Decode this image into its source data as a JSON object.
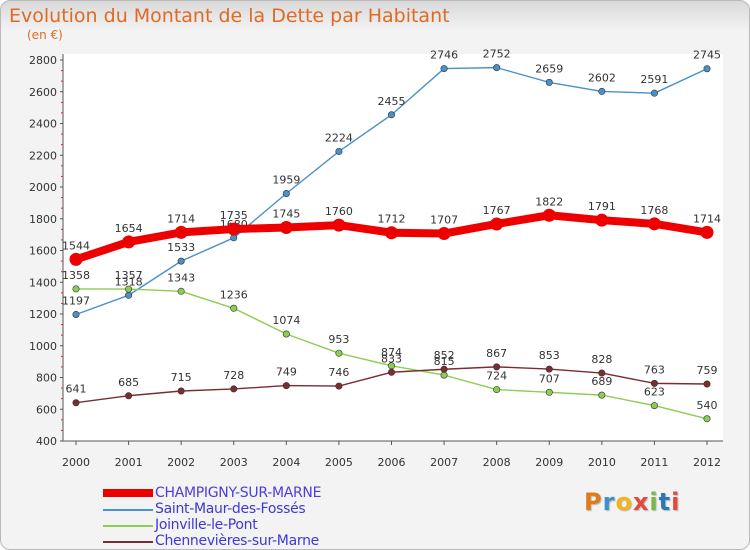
{
  "title": "Evolution du Montant de la Dette par Habitant",
  "subtitle": "(en €)",
  "logo": {
    "text": "Proxiti",
    "colors": [
      "#e07b1a",
      "#3f8fc9",
      "#f2b41b",
      "#e24b3b",
      "#7ab648",
      "#2d76b8",
      "#e24b3b"
    ]
  },
  "chart_data": {
    "type": "line",
    "title": "Evolution du Montant de la Dette par Habitant",
    "subtitle": "(en €)",
    "x": [
      "2000",
      "2001",
      "2002",
      "2003",
      "2004",
      "2005",
      "2006",
      "2007",
      "2008",
      "2009",
      "2010",
      "2011",
      "2012"
    ],
    "ylim": [
      400,
      2800
    ],
    "yticks": [
      400,
      600,
      800,
      1000,
      1200,
      1400,
      1600,
      1800,
      2000,
      2200,
      2400,
      2600,
      2800
    ],
    "grid": false,
    "legend_position": "bottom-left",
    "series": [
      {
        "name": "CHAMPIGNY-SUR-MARNE",
        "color": "#ee0000",
        "emphasis": true,
        "values": [
          1544,
          1654,
          1714,
          1735,
          1745,
          1760,
          1712,
          1707,
          1767,
          1822,
          1791,
          1768,
          1714
        ]
      },
      {
        "name": "Saint-Maur-des-Fossés",
        "color": "#4a90c9",
        "values": [
          1197,
          1318,
          1533,
          1680,
          1959,
          2224,
          2455,
          2746,
          2752,
          2659,
          2602,
          2591,
          2745
        ]
      },
      {
        "name": "Joinville-le-Pont",
        "color": "#8ccd52",
        "values": [
          1358,
          1357,
          1343,
          1236,
          1074,
          953,
          874,
          815,
          724,
          707,
          689,
          623,
          540
        ]
      },
      {
        "name": "Chennevières-sur-Marne",
        "color": "#7a2e2e",
        "values": [
          641,
          685,
          715,
          728,
          749,
          746,
          833,
          852,
          867,
          853,
          828,
          763,
          759
        ]
      }
    ]
  }
}
